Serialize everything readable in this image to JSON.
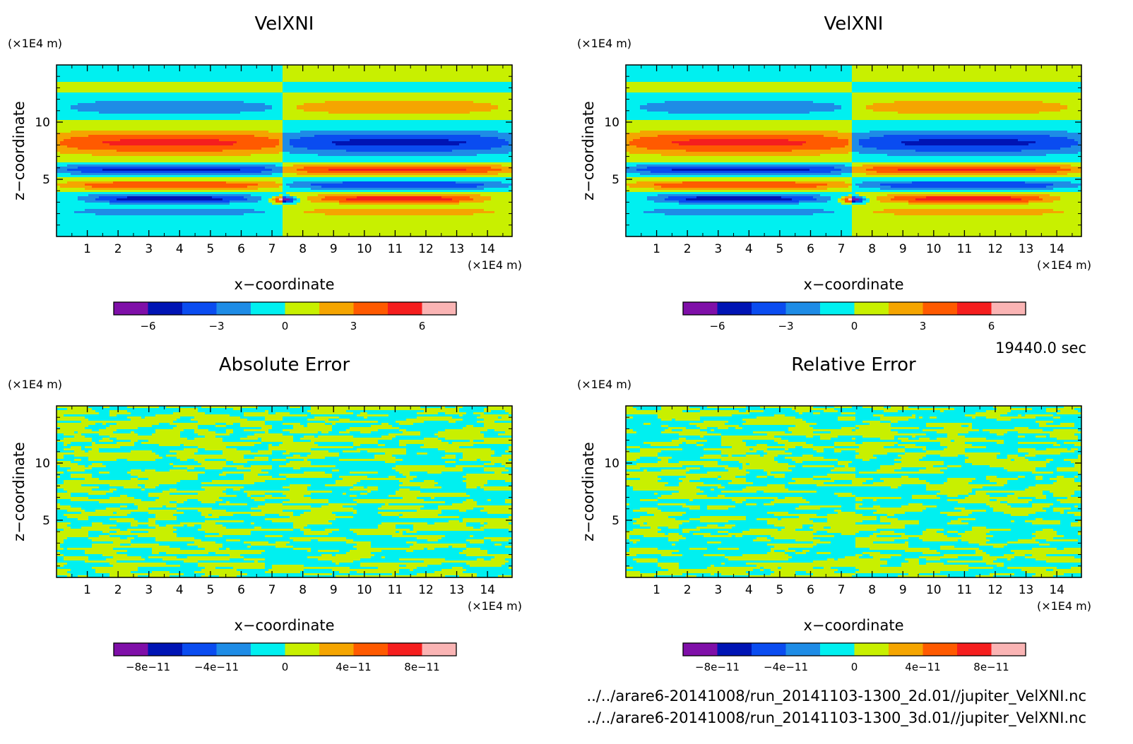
{
  "colors": {
    "levels": [
      "#7f0fa8",
      "#0014b4",
      "#0a4cf0",
      "#1e8ce6",
      "#00f0f0",
      "#c8f000",
      "#f5a500",
      "#ff5a00",
      "#f51e1e",
      "#fab4b4"
    ]
  },
  "chart_data": [
    {
      "type": "heatmap",
      "title": "VelXNI",
      "y_unit": "(×1E4 m)",
      "x_unit": "(×1E4 m)",
      "xlabel": "x−coordinate",
      "ylabel": "z−coordinate",
      "x_ticks": [
        "1",
        "2",
        "3",
        "4",
        "5",
        "6",
        "7",
        "8",
        "9",
        "10",
        "11",
        "12",
        "13",
        "14"
      ],
      "y_ticks": [
        "5",
        "10"
      ],
      "xlim": [
        0,
        14.8
      ],
      "ylim": [
        0,
        15
      ],
      "pattern": "field",
      "colorbar": {
        "range": [
          -7.5,
          7.5
        ],
        "labels": [
          {
            "value": -6,
            "text": "−6"
          },
          {
            "value": -3,
            "text": "−3"
          },
          {
            "value": 0,
            "text": "0"
          },
          {
            "value": 3,
            "text": "3"
          },
          {
            "value": 6,
            "text": "6"
          }
        ]
      }
    },
    {
      "type": "heatmap",
      "title": "VelXNI",
      "y_unit": "(×1E4 m)",
      "x_unit": "(×1E4 m)",
      "xlabel": "x−coordinate",
      "ylabel": "z−coordinate",
      "x_ticks": [
        "1",
        "2",
        "3",
        "4",
        "5",
        "6",
        "7",
        "8",
        "9",
        "10",
        "11",
        "12",
        "13",
        "14"
      ],
      "y_ticks": [
        "5",
        "10"
      ],
      "xlim": [
        0,
        14.8
      ],
      "ylim": [
        0,
        15
      ],
      "pattern": "field",
      "colorbar": {
        "range": [
          -7.5,
          7.5
        ],
        "labels": [
          {
            "value": -6,
            "text": "−6"
          },
          {
            "value": -3,
            "text": "−3"
          },
          {
            "value": 0,
            "text": "0"
          },
          {
            "value": 3,
            "text": "3"
          },
          {
            "value": 6,
            "text": "6"
          }
        ]
      }
    },
    {
      "type": "heatmap",
      "title": "Absolute Error",
      "y_unit": "(×1E4 m)",
      "x_unit": "(×1E4 m)",
      "xlabel": "x−coordinate",
      "ylabel": "z−coordinate",
      "x_ticks": [
        "1",
        "2",
        "3",
        "4",
        "5",
        "6",
        "7",
        "8",
        "9",
        "10",
        "11",
        "12",
        "13",
        "14"
      ],
      "y_ticks": [
        "5",
        "10"
      ],
      "xlim": [
        0,
        14.8
      ],
      "ylim": [
        0,
        15
      ],
      "pattern": "noise",
      "colorbar": {
        "range": [
          -1e-10,
          1e-10
        ],
        "labels": [
          {
            "value": -8e-11,
            "text": "−8e−11"
          },
          {
            "value": -4e-11,
            "text": "−4e−11"
          },
          {
            "value": 0,
            "text": "0"
          },
          {
            "value": 4e-11,
            "text": "4e−11"
          },
          {
            "value": 8e-11,
            "text": "8e−11"
          }
        ]
      }
    },
    {
      "type": "heatmap",
      "title": "Relative Error",
      "y_unit": "(×1E4 m)",
      "x_unit": "(×1E4 m)",
      "xlabel": "x−coordinate",
      "ylabel": "z−coordinate",
      "x_ticks": [
        "1",
        "2",
        "3",
        "4",
        "5",
        "6",
        "7",
        "8",
        "9",
        "10",
        "11",
        "12",
        "13",
        "14"
      ],
      "y_ticks": [
        "5",
        "10"
      ],
      "xlim": [
        0,
        14.8
      ],
      "ylim": [
        0,
        15
      ],
      "pattern": "noise",
      "colorbar": {
        "range": [
          -1e-10,
          1e-10
        ],
        "labels": [
          {
            "value": -8e-11,
            "text": "−8e−11"
          },
          {
            "value": -4e-11,
            "text": "−4e−11"
          },
          {
            "value": 0,
            "text": "0"
          },
          {
            "value": 4e-11,
            "text": "4e−11"
          },
          {
            "value": 8e-11,
            "text": "8e−11"
          }
        ]
      }
    }
  ],
  "time_label": "19440.0 sec",
  "files": [
    "../../arare6-20141008/run_20141103-1300_2d.01//jupiter_VelXNI.nc",
    "../../arare6-20141008/run_20141103-1300_3d.01//jupiter_VelXNI.nc"
  ]
}
